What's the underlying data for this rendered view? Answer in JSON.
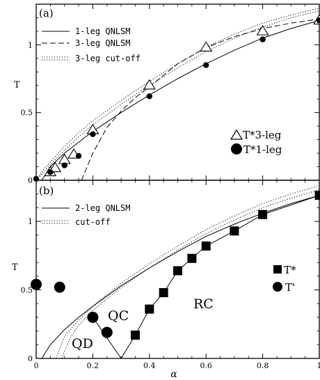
{
  "chart_data": [
    {
      "type": "line",
      "panel_label": "(a)",
      "xlabel": "",
      "ylabel": "T",
      "xlim": [
        0,
        1
      ],
      "ylim": [
        0,
        1.3
      ],
      "x_ticks": [
        0,
        0.2,
        0.4,
        0.6,
        0.8,
        1
      ],
      "x_tick_labels": [
        "",
        "",
        "",
        "",
        "",
        ""
      ],
      "y_ticks": [
        0,
        0.5,
        1
      ],
      "y_tick_labels": [
        "0",
        "0.5",
        "1"
      ],
      "legend_lines": [
        {
          "label": "1-leg QNLSM",
          "style": "solid"
        },
        {
          "label": "3-leg QNLSM",
          "style": "dashed"
        },
        {
          "label": "3-leg cut-off",
          "style": "dotted"
        }
      ],
      "legend_markers": [
        {
          "label": "T*3-leg",
          "marker": "open-triangle"
        },
        {
          "label": "T*1-leg",
          "marker": "filled-circle"
        }
      ],
      "curves": [
        {
          "style": "solid",
          "x": [
            0.02,
            0.05,
            0.1,
            0.15,
            0.2,
            0.3,
            0.4,
            0.5,
            0.6,
            0.7,
            0.8,
            0.9,
            1.0
          ],
          "y": [
            0.0,
            0.1,
            0.2,
            0.28,
            0.36,
            0.5,
            0.63,
            0.75,
            0.86,
            0.96,
            1.05,
            1.12,
            1.18
          ]
        },
        {
          "style": "dashed",
          "x": [
            0.16,
            0.2,
            0.25,
            0.3,
            0.35,
            0.4,
            0.5,
            0.6,
            0.7,
            0.8,
            0.9,
            1.0
          ],
          "y": [
            0.0,
            0.2,
            0.39,
            0.51,
            0.61,
            0.69,
            0.86,
            0.98,
            1.06,
            1.12,
            1.16,
            1.19
          ]
        },
        {
          "style": "dotted",
          "x": [
            0.0,
            0.03,
            0.07,
            0.1,
            0.15,
            0.2,
            0.3,
            0.4,
            0.5,
            0.6,
            0.7,
            0.8,
            0.9,
            1.0
          ],
          "y": [
            0.0,
            0.09,
            0.18,
            0.25,
            0.35,
            0.44,
            0.59,
            0.73,
            0.86,
            0.98,
            1.08,
            1.16,
            1.22,
            1.27
          ]
        },
        {
          "style": "dotted",
          "x": [
            0.0,
            0.03,
            0.07,
            0.1,
            0.15,
            0.2,
            0.3,
            0.4,
            0.5,
            0.6,
            0.7,
            0.8,
            0.9,
            1.0
          ],
          "y": [
            0.0,
            0.07,
            0.16,
            0.22,
            0.32,
            0.41,
            0.56,
            0.7,
            0.83,
            0.95,
            1.05,
            1.13,
            1.2,
            1.25
          ]
        }
      ],
      "series": [
        {
          "name": "T*3-leg",
          "marker": "open-triangle",
          "x": [
            0.05,
            0.067,
            0.1,
            0.133,
            0.2,
            0.4,
            0.6,
            0.8,
            1.0
          ],
          "y": [
            0.06,
            0.09,
            0.15,
            0.19,
            0.37,
            0.7,
            0.98,
            1.1,
            1.18
          ]
        },
        {
          "name": "T*1-leg",
          "marker": "filled-circle",
          "x": [
            0.0,
            0.05,
            0.1,
            0.15,
            0.2,
            0.4,
            0.6,
            0.8,
            1.0
          ],
          "y": [
            0.01,
            0.06,
            0.11,
            0.18,
            0.34,
            0.62,
            0.85,
            1.04,
            1.18
          ]
        }
      ]
    },
    {
      "type": "line",
      "panel_label": "(b)",
      "xlabel": "α",
      "ylabel": "T",
      "xlim": [
        0,
        1
      ],
      "ylim": [
        0,
        1.3
      ],
      "x_ticks": [
        0,
        0.2,
        0.4,
        0.6,
        0.8,
        1
      ],
      "x_tick_labels": [
        "0",
        "0.2",
        "0.4",
        "0.6",
        "0.8",
        "1"
      ],
      "y_ticks": [
        0,
        0.5,
        1
      ],
      "y_tick_labels": [
        "0",
        "0.5",
        "1"
      ],
      "legend_lines": [
        {
          "label": "2-leg QNLSM",
          "style": "solid"
        },
        {
          "label": "cut-off",
          "style": "dotted"
        }
      ],
      "legend_markers": [
        {
          "label": "T*",
          "marker": "filled-square"
        },
        {
          "label": "T'",
          "marker": "filled-circle"
        }
      ],
      "curves": [
        {
          "style": "solid",
          "x": [
            0.02,
            0.05,
            0.1,
            0.15,
            0.2,
            0.3,
            0.4,
            0.5,
            0.6,
            0.7,
            0.8,
            0.9,
            1.0
          ],
          "y": [
            0.0,
            0.1,
            0.21,
            0.3,
            0.38,
            0.53,
            0.66,
            0.78,
            0.89,
            0.98,
            1.06,
            1.13,
            1.19
          ]
        },
        {
          "style": "dotted",
          "x": [
            0.07,
            0.1,
            0.15,
            0.2,
            0.3,
            0.4,
            0.5,
            0.6,
            0.7,
            0.8,
            0.9,
            1.0
          ],
          "y": [
            0.0,
            0.16,
            0.28,
            0.38,
            0.55,
            0.69,
            0.82,
            0.94,
            1.04,
            1.13,
            1.2,
            1.26
          ]
        },
        {
          "style": "dotted",
          "x": [
            0.09,
            0.12,
            0.15,
            0.2,
            0.3,
            0.4,
            0.5,
            0.6,
            0.7,
            0.8,
            0.9,
            1.0
          ],
          "y": [
            0.0,
            0.15,
            0.24,
            0.35,
            0.52,
            0.66,
            0.79,
            0.91,
            1.01,
            1.1,
            1.17,
            1.23
          ]
        },
        {
          "style": "solid",
          "x": [
            0.2,
            0.3,
            0.35,
            0.4,
            0.45,
            0.5,
            0.55,
            0.6,
            0.7,
            0.8,
            1.0
          ],
          "y": [
            0.3,
            0.0,
            0.17,
            0.36,
            0.48,
            0.64,
            0.73,
            0.82,
            0.93,
            1.05,
            1.19
          ]
        }
      ],
      "series": [
        {
          "name": "T*",
          "marker": "filled-square",
          "x": [
            0.35,
            0.4,
            0.45,
            0.5,
            0.55,
            0.6,
            0.7,
            0.8,
            1.0
          ],
          "y": [
            0.17,
            0.36,
            0.48,
            0.64,
            0.73,
            0.82,
            0.93,
            1.05,
            1.19
          ]
        },
        {
          "name": "T'",
          "marker": "filled-circle",
          "x": [
            0.0,
            0.083,
            0.2,
            0.25
          ],
          "y": [
            0.54,
            0.52,
            0.3,
            0.19
          ]
        }
      ],
      "region_labels": [
        "QD",
        "QC",
        "RC"
      ]
    }
  ]
}
